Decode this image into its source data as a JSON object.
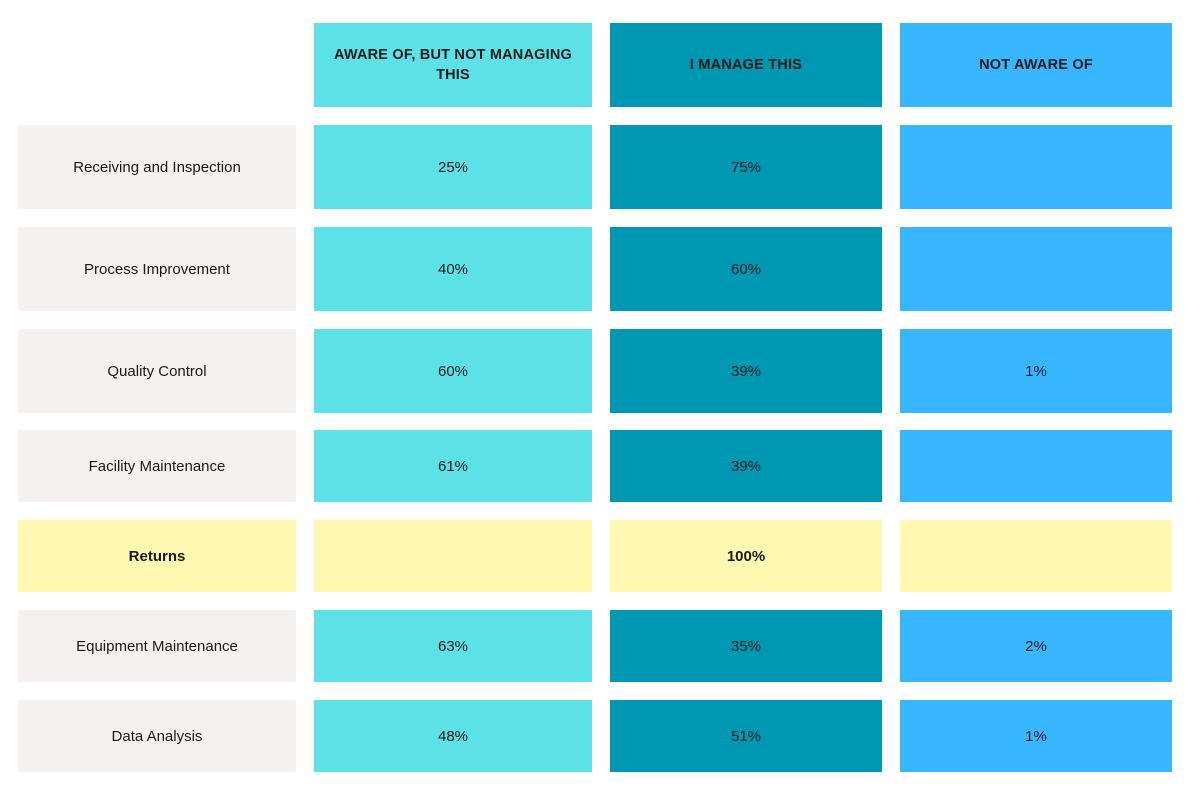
{
  "chart_data": {
    "type": "table",
    "columns": [
      "AWARE OF, BUT NOT MANAGING THIS",
      "I MANAGE THIS",
      "NOT AWARE OF"
    ],
    "column_colors": [
      "#5ce1e6",
      "#0097b2",
      "#38b6ff"
    ],
    "highlight_color": "#fff8b0",
    "label_bg": "#f4f1f0",
    "rows": [
      {
        "label": "Receiving and Inspection",
        "values": [
          "25%",
          "75%",
          ""
        ],
        "highlight": false
      },
      {
        "label": "Process Improvement",
        "values": [
          "40%",
          "60%",
          ""
        ],
        "highlight": false
      },
      {
        "label": "Quality Control",
        "values": [
          "60%",
          "39%",
          "1%"
        ],
        "highlight": false
      },
      {
        "label": "Facility Maintenance",
        "values": [
          "61%",
          "39%",
          ""
        ],
        "highlight": false
      },
      {
        "label": "Returns",
        "values": [
          "",
          "100%",
          ""
        ],
        "highlight": true
      },
      {
        "label": "Equipment Maintenance",
        "values": [
          "63%",
          "35%",
          "2%"
        ],
        "highlight": false
      },
      {
        "label": "Data Analysis",
        "values": [
          "48%",
          "51%",
          "1%"
        ],
        "highlight": false
      }
    ]
  }
}
